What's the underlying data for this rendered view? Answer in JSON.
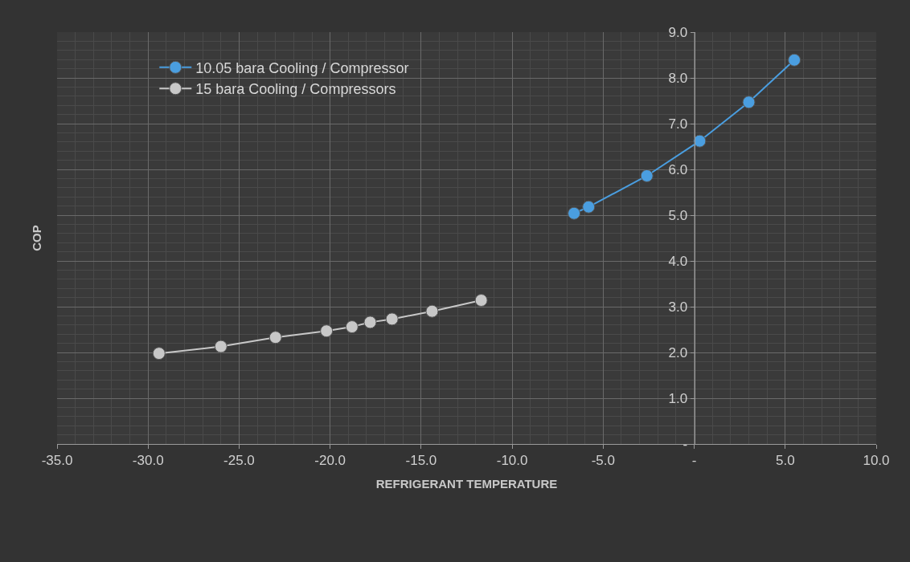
{
  "chart_data": {
    "type": "line",
    "xlabel": "REFRIGERANT TEMPERATURE",
    "ylabel": "COP",
    "xlim": [
      -35,
      10
    ],
    "xticks": [
      {
        "value": -35,
        "label": "-35.0"
      },
      {
        "value": -30,
        "label": "-30.0"
      },
      {
        "value": -25,
        "label": "-25.0"
      },
      {
        "value": -20,
        "label": "-20.0"
      },
      {
        "value": -15,
        "label": "-15.0"
      },
      {
        "value": -10,
        "label": "-10.0"
      },
      {
        "value": -5,
        "label": "-5.0"
      },
      {
        "value": 0,
        "label": "-"
      },
      {
        "value": 5,
        "label": "5.0"
      },
      {
        "value": 10,
        "label": "10.0"
      }
    ],
    "ylim": [
      0,
      9
    ],
    "yticks": [
      {
        "value": 0,
        "label": "-"
      },
      {
        "value": 1,
        "label": "1.0"
      },
      {
        "value": 2,
        "label": "2.0"
      },
      {
        "value": 3,
        "label": "3.0"
      },
      {
        "value": 4,
        "label": "4.0"
      },
      {
        "value": 5,
        "label": "5.0"
      },
      {
        "value": 6,
        "label": "6.0"
      },
      {
        "value": 7,
        "label": "7.0"
      },
      {
        "value": 8,
        "label": "8.0"
      },
      {
        "value": 9,
        "label": "9.0"
      }
    ],
    "grid": true,
    "legend": "top left",
    "marker": "circle",
    "line_style": "solid",
    "series": [
      {
        "name": "10.05 bara Cooling / Compressor",
        "color": "#4a9ee0",
        "x": [
          -6.6,
          -5.8,
          -2.6,
          0.3,
          3.0,
          5.5
        ],
        "values": [
          5.04,
          5.18,
          5.86,
          6.62,
          7.47,
          8.39
        ]
      },
      {
        "name": "15 bara Cooling / Compressors",
        "color": "#c8c8c8",
        "x": [
          -29.4,
          -26.0,
          -23.0,
          -20.2,
          -18.8,
          -17.8,
          -16.6,
          -14.4,
          -11.7
        ],
        "values": [
          1.98,
          2.13,
          2.33,
          2.47,
          2.56,
          2.66,
          2.73,
          2.9,
          3.14
        ]
      }
    ]
  }
}
